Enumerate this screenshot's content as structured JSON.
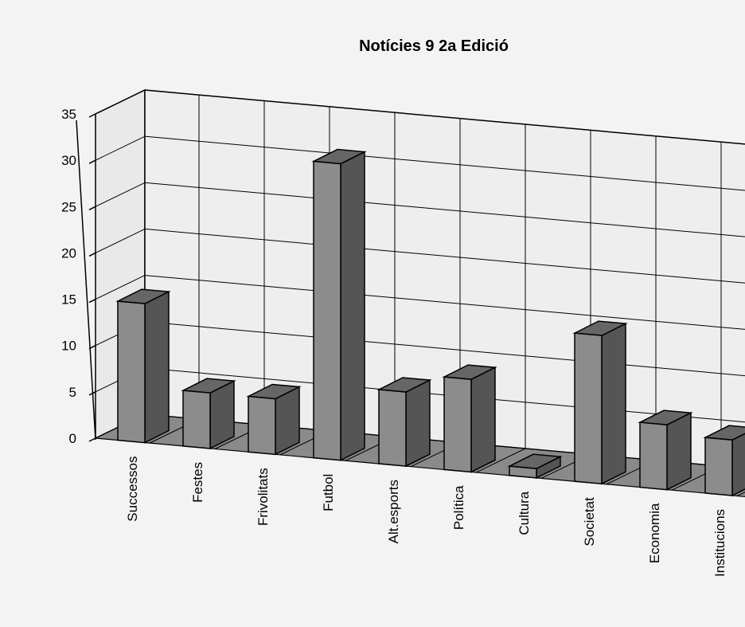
{
  "chart_data": {
    "type": "bar3d",
    "title": "Notícies 9  2a Edició",
    "categories": [
      "Successos",
      "Festes",
      "Frivolitats",
      "Futbol",
      "Alt.esports",
      "Política",
      "Cultura",
      "Societat",
      "Economia",
      "Institucions"
    ],
    "values": [
      15,
      6,
      6,
      32,
      8,
      10,
      1,
      16,
      7,
      6
    ],
    "color": "#8c8c8c",
    "ylim": [
      0,
      35
    ],
    "yticks": [
      0,
      5,
      10,
      15,
      20,
      25,
      30,
      35
    ],
    "grid": true
  }
}
